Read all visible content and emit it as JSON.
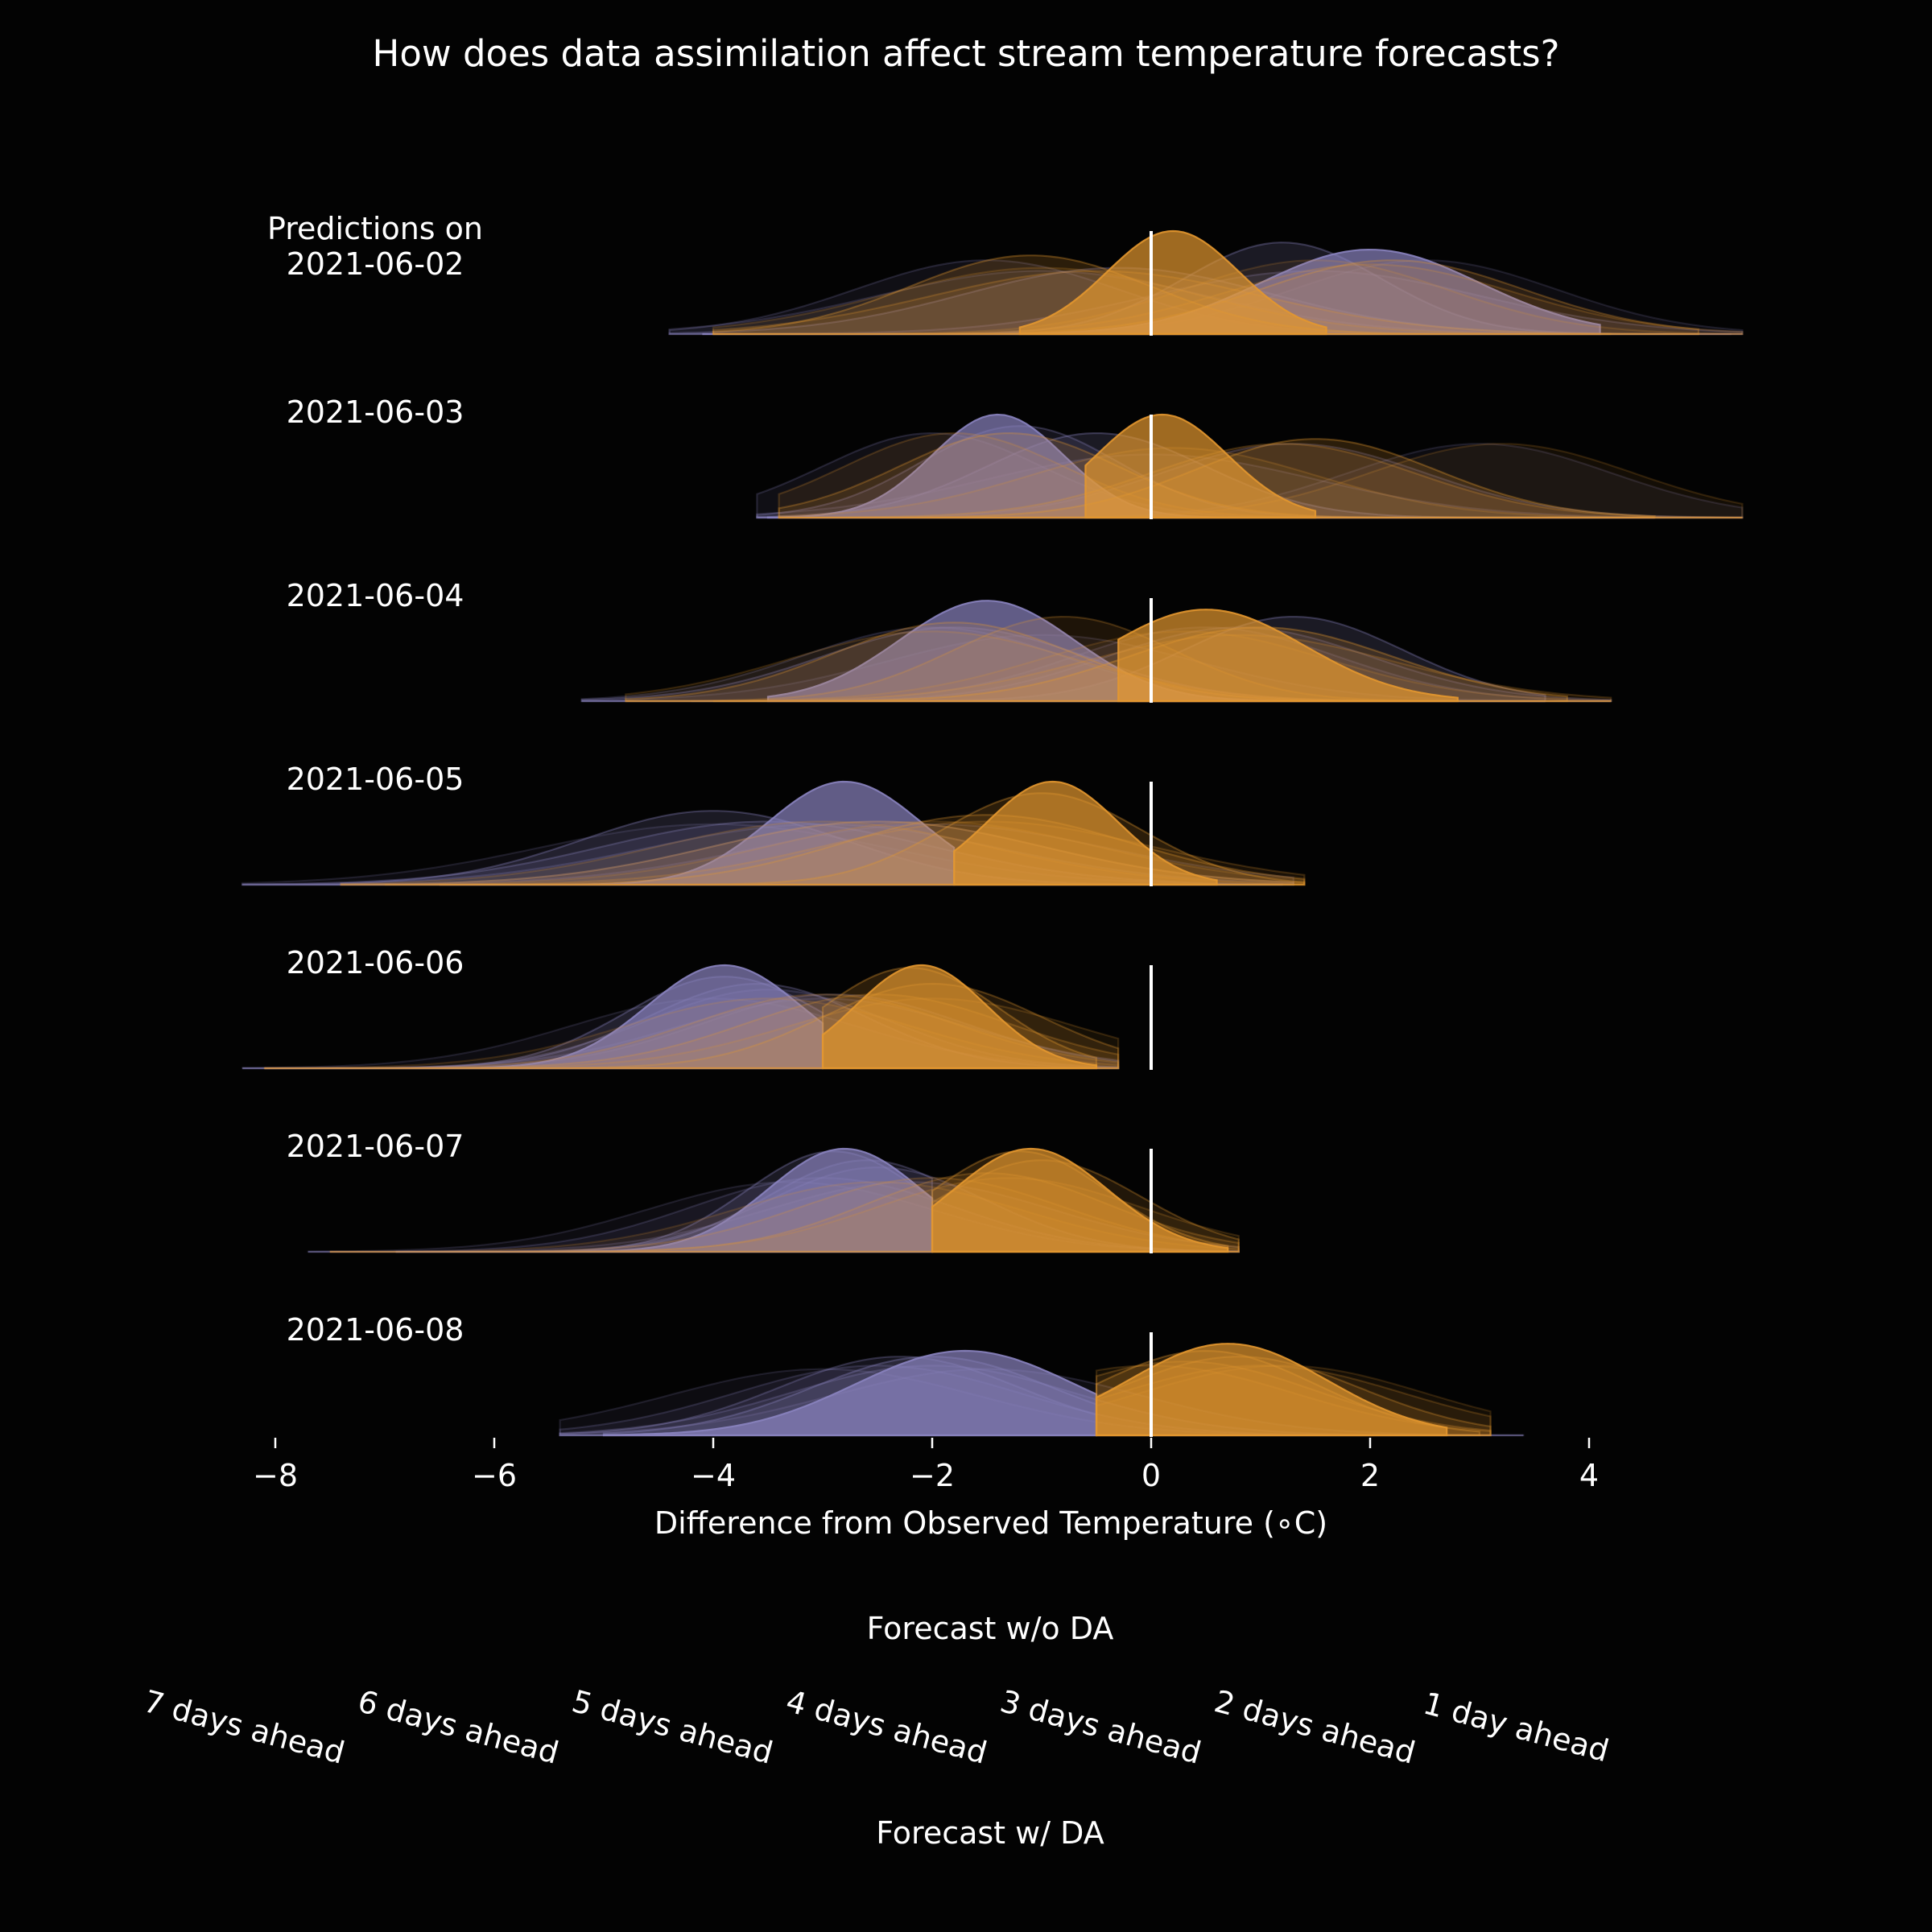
{
  "chart_data": {
    "type": "area",
    "title": "How does data assimilation affect stream temperature forecasts?",
    "xlabel": "Difference from Observed Temperature (∘C)",
    "xlim": [
      -8.3,
      5.4
    ],
    "xticks": [
      -8,
      -6,
      -4,
      -2,
      0,
      2,
      4
    ],
    "xtick_labels": [
      "−8",
      "−6",
      "−4",
      "−2",
      "0",
      "2",
      "4"
    ],
    "grid": false,
    "reference_line": 0,
    "colors": {
      "no_da": "#8a83bf",
      "da": "#e3972f",
      "background": "#030303",
      "text": "#ffffff"
    },
    "rows": [
      {
        "label": [
          "Predictions on",
          "2021-06-02"
        ],
        "no_da": [
          {
            "lead": 1,
            "mean": 2.0,
            "sd": 1.0,
            "min": -4.1,
            "max": 4.1
          },
          {
            "lead": 2,
            "mean": 1.2,
            "sd": 0.9,
            "min": -3.8,
            "max": 5.0
          },
          {
            "lead": 3,
            "mean": -0.3,
            "sd": 1.4,
            "min": -4.4,
            "max": 5.3
          },
          {
            "lead": 4,
            "mean": 1.5,
            "sd": 1.5,
            "min": -4.0,
            "max": 5.4
          },
          {
            "lead": 5,
            "mean": -1.5,
            "sd": 1.2,
            "min": -4.4,
            "max": 5.4
          },
          {
            "lead": 6,
            "mean": -1.0,
            "sd": 1.5,
            "min": -4.4,
            "max": 5.4
          },
          {
            "lead": 7,
            "mean": 2.5,
            "sd": 1.2,
            "min": -4.4,
            "max": 5.4
          }
        ],
        "da": [
          {
            "lead": 1,
            "mean": 0.2,
            "sd": 0.6,
            "min": -1.2,
            "max": 1.6
          },
          {
            "lead": 2,
            "mean": -1.1,
            "sd": 1.1,
            "min": -4.0,
            "max": 4.2
          },
          {
            "lead": 3,
            "mean": 2.2,
            "sd": 1.2,
            "min": -4.0,
            "max": 5.0
          },
          {
            "lead": 4,
            "mean": -0.5,
            "sd": 1.5,
            "min": -4.0,
            "max": 5.0
          },
          {
            "lead": 5,
            "mean": 2.0,
            "sd": 1.3,
            "min": -4.0,
            "max": 5.4
          },
          {
            "lead": 6,
            "mean": -1.0,
            "sd": 1.4,
            "min": -4.0,
            "max": 5.4
          },
          {
            "lead": 7,
            "mean": 1.5,
            "sd": 1.2,
            "min": -4.0,
            "max": 5.4
          }
        ]
      },
      {
        "label": [
          "2021-06-03"
        ],
        "no_da": [
          {
            "lead": 1,
            "mean": -1.4,
            "sd": 0.6,
            "min": -3.5,
            "max": 4.6
          },
          {
            "lead": 2,
            "mean": -0.5,
            "sd": 1.0,
            "min": -3.6,
            "max": 4.6
          },
          {
            "lead": 3,
            "mean": -1.2,
            "sd": 0.9,
            "min": -3.6,
            "max": 5.4
          },
          {
            "lead": 4,
            "mean": 1.3,
            "sd": 1.2,
            "min": -3.6,
            "max": 5.4
          },
          {
            "lead": 5,
            "mean": -2.0,
            "sd": 1.0,
            "min": -3.6,
            "max": 5.4
          },
          {
            "lead": 6,
            "mean": 0.0,
            "sd": 1.5,
            "min": -3.6,
            "max": 5.4
          },
          {
            "lead": 7,
            "mean": 3.0,
            "sd": 1.2,
            "min": -3.6,
            "max": 5.4
          }
        ],
        "da": [
          {
            "lead": 1,
            "mean": 0.1,
            "sd": 0.6,
            "min": -0.6,
            "max": 1.5
          },
          {
            "lead": 2,
            "mean": 1.5,
            "sd": 1.1,
            "min": -3.4,
            "max": 4.6
          },
          {
            "lead": 3,
            "mean": -1.3,
            "sd": 1.0,
            "min": -3.4,
            "max": 5.4
          },
          {
            "lead": 4,
            "mean": 1.2,
            "sd": 1.2,
            "min": -3.4,
            "max": 5.4
          },
          {
            "lead": 5,
            "mean": -1.8,
            "sd": 1.0,
            "min": -3.4,
            "max": 5.4
          },
          {
            "lead": 6,
            "mean": 0.2,
            "sd": 1.3,
            "min": -3.4,
            "max": 5.4
          },
          {
            "lead": 7,
            "mean": 3.2,
            "sd": 1.2,
            "min": -3.4,
            "max": 5.4
          }
        ]
      },
      {
        "label": [
          "2021-06-04"
        ],
        "no_da": [
          {
            "lead": 1,
            "mean": -1.5,
            "sd": 0.8,
            "min": -3.5,
            "max": 3.6
          },
          {
            "lead": 2,
            "mean": 1.3,
            "sd": 1.0,
            "min": -4.2,
            "max": 3.6
          },
          {
            "lead": 3,
            "mean": -1.8,
            "sd": 1.2,
            "min": -5.2,
            "max": 4.2
          },
          {
            "lead": 4,
            "mean": 0.8,
            "sd": 1.2,
            "min": -5.2,
            "max": 4.2
          },
          {
            "lead": 5,
            "mean": -2.0,
            "sd": 1.2,
            "min": -5.2,
            "max": 4.2
          },
          {
            "lead": 6,
            "mean": 0.5,
            "sd": 1.2,
            "min": -5.2,
            "max": 4.2
          },
          {
            "lead": 7,
            "mean": -1.0,
            "sd": 1.4,
            "min": -5.2,
            "max": 4.2
          }
        ],
        "da": [
          {
            "lead": 1,
            "mean": 0.5,
            "sd": 0.9,
            "min": -0.3,
            "max": 2.8
          },
          {
            "lead": 2,
            "mean": 1.0,
            "sd": 1.2,
            "min": -4.0,
            "max": 3.8
          },
          {
            "lead": 3,
            "mean": -1.8,
            "sd": 1.1,
            "min": -4.8,
            "max": 4.2
          },
          {
            "lead": 4,
            "mean": -0.8,
            "sd": 1.0,
            "min": -4.8,
            "max": 4.2
          },
          {
            "lead": 5,
            "mean": 0.8,
            "sd": 1.4,
            "min": -4.8,
            "max": 4.2
          },
          {
            "lead": 6,
            "mean": -2.0,
            "sd": 1.3,
            "min": -4.8,
            "max": 4.2
          },
          {
            "lead": 7,
            "mean": 0.3,
            "sd": 1.3,
            "min": -4.8,
            "max": 4.2
          }
        ]
      },
      {
        "label": [
          "2021-06-05"
        ],
        "no_da": [
          {
            "lead": 1,
            "mean": -2.8,
            "sd": 0.7,
            "min": -6.5,
            "max": -1.8
          },
          {
            "lead": 2,
            "mean": -4.0,
            "sd": 1.2,
            "min": -7.4,
            "max": 1.2
          },
          {
            "lead": 3,
            "mean": -3.5,
            "sd": 1.5,
            "min": -8.3,
            "max": 1.2
          },
          {
            "lead": 4,
            "mean": -2.5,
            "sd": 1.5,
            "min": -8.3,
            "max": 1.3
          },
          {
            "lead": 5,
            "mean": -3.0,
            "sd": 1.6,
            "min": -8.3,
            "max": 1.3
          },
          {
            "lead": 6,
            "mean": -2.0,
            "sd": 1.6,
            "min": -8.3,
            "max": 1.3
          },
          {
            "lead": 7,
            "mean": -4.0,
            "sd": 1.6,
            "min": -8.3,
            "max": 1.3
          }
        ],
        "da": [
          {
            "lead": 1,
            "mean": -0.9,
            "sd": 0.6,
            "min": -1.8,
            "max": 0.6
          },
          {
            "lead": 2,
            "mean": -1.0,
            "sd": 0.9,
            "min": -6.5,
            "max": 1.4
          },
          {
            "lead": 3,
            "mean": -1.5,
            "sd": 1.3,
            "min": -7.0,
            "max": 1.4
          },
          {
            "lead": 4,
            "mean": -2.5,
            "sd": 1.5,
            "min": -7.4,
            "max": 1.4
          },
          {
            "lead": 5,
            "mean": -1.5,
            "sd": 1.5,
            "min": -7.4,
            "max": 1.4
          },
          {
            "lead": 6,
            "mean": -3.0,
            "sd": 1.5,
            "min": -7.4,
            "max": 1.4
          },
          {
            "lead": 7,
            "mean": -2.0,
            "sd": 1.5,
            "min": -7.4,
            "max": 1.4
          }
        ]
      },
      {
        "label": [
          "2021-06-06"
        ],
        "no_da": [
          {
            "lead": 1,
            "mean": -3.9,
            "sd": 0.7,
            "min": -8.1,
            "max": -3.0
          },
          {
            "lead": 2,
            "mean": -3.9,
            "sd": 0.9,
            "min": -8.1,
            "max": -3.0
          },
          {
            "lead": 3,
            "mean": -3.6,
            "sd": 1.0,
            "min": -8.3,
            "max": -0.3
          },
          {
            "lead": 4,
            "mean": -2.9,
            "sd": 1.2,
            "min": -8.3,
            "max": -0.3
          },
          {
            "lead": 5,
            "mean": -3.5,
            "sd": 1.1,
            "min": -8.3,
            "max": -0.3
          },
          {
            "lead": 6,
            "mean": -3.0,
            "sd": 1.3,
            "min": -8.3,
            "max": -0.3
          },
          {
            "lead": 7,
            "mean": -4.0,
            "sd": 1.3,
            "min": -8.3,
            "max": -0.3
          }
        ],
        "da": [
          {
            "lead": 1,
            "mean": -2.1,
            "sd": 0.6,
            "min": -3.0,
            "max": -0.5
          },
          {
            "lead": 2,
            "mean": -2.2,
            "sd": 0.8,
            "min": -3.0,
            "max": -0.5
          },
          {
            "lead": 3,
            "mean": -2.0,
            "sd": 1.0,
            "min": -8.1,
            "max": -0.3
          },
          {
            "lead": 4,
            "mean": -2.5,
            "sd": 1.2,
            "min": -8.1,
            "max": -0.3
          },
          {
            "lead": 5,
            "mean": -3.0,
            "sd": 1.2,
            "min": -8.1,
            "max": -0.3
          },
          {
            "lead": 6,
            "mean": -2.0,
            "sd": 1.3,
            "min": -8.1,
            "max": -0.3
          },
          {
            "lead": 7,
            "mean": -3.5,
            "sd": 1.3,
            "min": -8.1,
            "max": -0.3
          }
        ]
      },
      {
        "label": [
          "2021-06-07"
        ],
        "no_da": [
          {
            "lead": 1,
            "mean": -2.8,
            "sd": 0.7,
            "min": -6.9,
            "max": -2.0
          },
          {
            "lead": 2,
            "mean": -2.9,
            "sd": 0.8,
            "min": -6.9,
            "max": -2.0
          },
          {
            "lead": 3,
            "mean": -2.6,
            "sd": 0.9,
            "min": -7.5,
            "max": -2.0
          },
          {
            "lead": 4,
            "mean": -2.5,
            "sd": 1.0,
            "min": -7.7,
            "max": 0.8
          },
          {
            "lead": 5,
            "mean": -3.0,
            "sd": 1.2,
            "min": -7.7,
            "max": 0.8
          },
          {
            "lead": 6,
            "mean": -2.2,
            "sd": 1.3,
            "min": -7.7,
            "max": 0.8
          },
          {
            "lead": 7,
            "mean": -3.3,
            "sd": 1.3,
            "min": -7.7,
            "max": 0.8
          }
        ],
        "da": [
          {
            "lead": 1,
            "mean": -1.1,
            "sd": 0.7,
            "min": -2.0,
            "max": 0.7
          },
          {
            "lead": 2,
            "mean": -1.2,
            "sd": 0.8,
            "min": -2.0,
            "max": 0.7
          },
          {
            "lead": 3,
            "mean": -1.0,
            "sd": 0.9,
            "min": -2.0,
            "max": 0.8
          },
          {
            "lead": 4,
            "mean": -1.5,
            "sd": 1.1,
            "min": -7.5,
            "max": 0.8
          },
          {
            "lead": 5,
            "mean": -2.0,
            "sd": 1.2,
            "min": -7.5,
            "max": 0.8
          },
          {
            "lead": 6,
            "mean": -1.3,
            "sd": 1.2,
            "min": -7.5,
            "max": 0.8
          },
          {
            "lead": 7,
            "mean": -2.5,
            "sd": 1.3,
            "min": -7.5,
            "max": 0.8
          }
        ]
      },
      {
        "label": [
          "2021-06-08"
        ],
        "no_da": [
          {
            "lead": 1,
            "mean": -1.7,
            "sd": 1.0,
            "min": -5.0,
            "max": -0.5
          },
          {
            "lead": 2,
            "mean": -2.0,
            "sd": 1.1,
            "min": -5.0,
            "max": -0.5
          },
          {
            "lead": 3,
            "mean": -2.3,
            "sd": 1.1,
            "min": -5.4,
            "max": -0.5
          },
          {
            "lead": 4,
            "mean": -2.0,
            "sd": 1.3,
            "min": -5.4,
            "max": 3.4
          },
          {
            "lead": 5,
            "mean": -2.5,
            "sd": 1.3,
            "min": -5.4,
            "max": 3.4
          },
          {
            "lead": 6,
            "mean": -1.5,
            "sd": 1.4,
            "min": -5.4,
            "max": 3.4
          },
          {
            "lead": 7,
            "mean": -3.0,
            "sd": 1.4,
            "min": -5.4,
            "max": 3.4
          }
        ],
        "da": [
          {
            "lead": 1,
            "mean": 0.7,
            "sd": 0.9,
            "min": -0.5,
            "max": 2.7
          },
          {
            "lead": 2,
            "mean": 0.5,
            "sd": 1.0,
            "min": -0.5,
            "max": 3.0
          },
          {
            "lead": 3,
            "mean": 0.8,
            "sd": 1.1,
            "min": -0.5,
            "max": 3.1
          },
          {
            "lead": 4,
            "mean": 0.3,
            "sd": 1.2,
            "min": -0.5,
            "max": 3.1
          },
          {
            "lead": 5,
            "mean": 1.0,
            "sd": 1.3,
            "min": -0.5,
            "max": 3.1
          },
          {
            "lead": 6,
            "mean": 0.0,
            "sd": 1.3,
            "min": -0.5,
            "max": 3.1
          },
          {
            "lead": 7,
            "mean": 1.2,
            "sd": 1.3,
            "min": -0.5,
            "max": 3.1
          }
        ]
      }
    ],
    "legend": {
      "placement": "bottom",
      "no_da_label": "Forecast w/o DA",
      "da_label": "Forecast w/ DA",
      "lead_labels": [
        "7 days ahead",
        "6 days ahead",
        "5 days ahead",
        "4 days ahead",
        "3 days ahead",
        "2 days ahead",
        "1 day ahead"
      ]
    }
  }
}
